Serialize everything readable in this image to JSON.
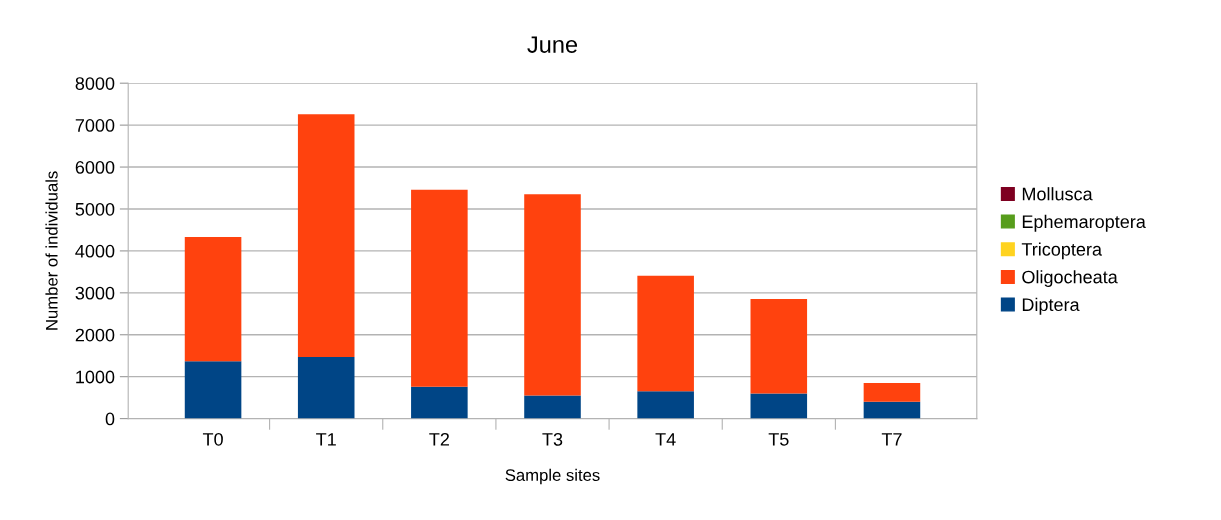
{
  "chart_data": {
    "type": "bar",
    "stacked": true,
    "title": "June",
    "xlabel": "Sample sites",
    "ylabel": "Number of individuals",
    "categories": [
      "T0",
      "T1",
      "T2",
      "T3",
      "T4",
      "T5",
      "T7"
    ],
    "series": [
      {
        "name": "Diptera",
        "color": "#004586",
        "values": [
          1370,
          1470,
          760,
          550,
          650,
          600,
          400
        ]
      },
      {
        "name": "Oligocheata",
        "color": "#ff420e",
        "values": [
          2960,
          5790,
          4700,
          4800,
          2760,
          2250,
          450
        ]
      },
      {
        "name": "Tricoptera",
        "color": "#ffd320",
        "values": [
          0,
          0,
          0,
          0,
          0,
          0,
          0
        ]
      },
      {
        "name": "Ephemaroptera",
        "color": "#579d1c",
        "values": [
          0,
          0,
          0,
          0,
          0,
          0,
          0
        ]
      },
      {
        "name": "Mollusca",
        "color": "#7e0021",
        "values": [
          0,
          0,
          0,
          0,
          0,
          0,
          0
        ]
      }
    ],
    "ylim": [
      0,
      8000
    ],
    "yticks": [
      0,
      1000,
      2000,
      3000,
      4000,
      5000,
      6000,
      7000,
      8000
    ],
    "grid": "y",
    "legend": "right"
  }
}
